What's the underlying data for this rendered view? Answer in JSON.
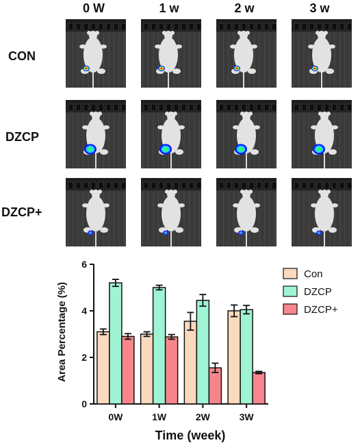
{
  "figure": {
    "columns": [
      "0 W",
      "1 w",
      "2 w",
      "3 w"
    ],
    "rows": [
      {
        "label": "CON",
        "signal": "hot",
        "signal_size": 1.0
      },
      {
        "label": "DZCP",
        "signal": "large",
        "signal_size": 1.8
      },
      {
        "label": "DZCP+",
        "signal": "small",
        "signal_size": 0.8
      }
    ],
    "signal_colors": {
      "hot": [
        "#1a2bff",
        "#22e0a0",
        "#ffd21a",
        "#ff2a1a"
      ],
      "large": [
        "#0a1cff",
        "#1fd0ff",
        "#33ff66"
      ],
      "small": [
        "#1a2bff",
        "#3aa0ff"
      ]
    }
  },
  "chart_data": {
    "type": "bar",
    "categories": [
      "0W",
      "1W",
      "2W",
      "3W"
    ],
    "series": [
      {
        "name": "Con",
        "color": "#fbd9bd",
        "values": [
          3.1,
          3.0,
          3.55,
          4.0
        ],
        "errors": [
          0.12,
          0.1,
          0.38,
          0.25
        ]
      },
      {
        "name": "DZCP",
        "color": "#9ff4d4",
        "values": [
          5.2,
          5.0,
          4.45,
          4.05
        ],
        "errors": [
          0.15,
          0.1,
          0.25,
          0.18
        ]
      },
      {
        "name": "DZCP+",
        "color": "#f6868c",
        "values": [
          2.9,
          2.88,
          1.55,
          1.35
        ],
        "errors": [
          0.12,
          0.1,
          0.2,
          0.05
        ]
      }
    ],
    "xlabel": "Time (week)",
    "ylabel": "Area Percentage (%)",
    "ylim": [
      0,
      6
    ],
    "yticks": [
      "0",
      "2",
      "4",
      "6"
    ],
    "legend_position": "top-right",
    "grid": false
  }
}
